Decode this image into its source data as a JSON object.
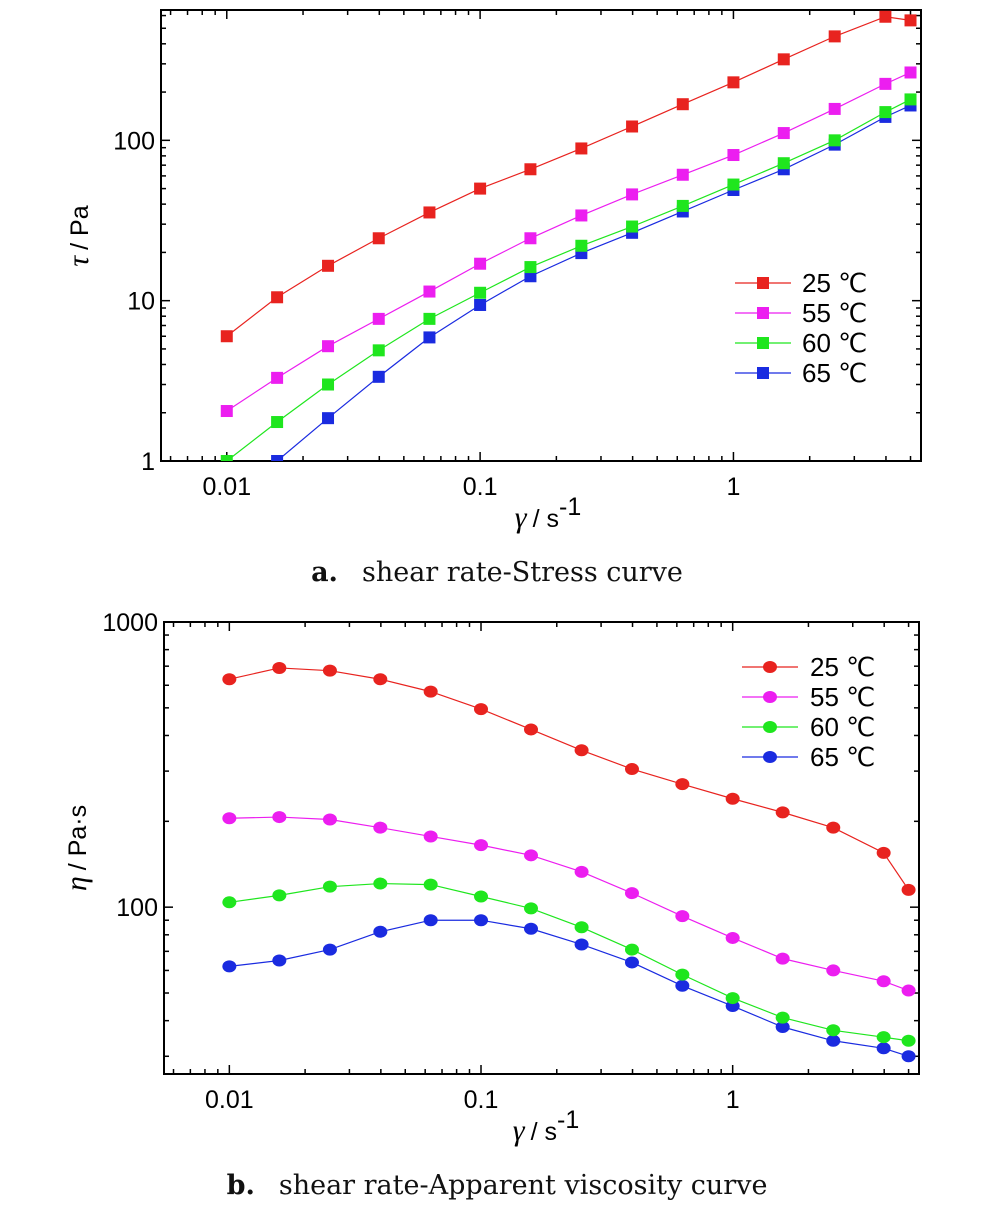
{
  "chart_data": [
    {
      "type": "line",
      "marker": "square",
      "xscale": "log",
      "yscale": "log",
      "xlim": [
        0.0055,
        5.5
      ],
      "ylim": [
        1,
        650
      ],
      "xticks": [
        "0.01",
        "0.1",
        "1"
      ],
      "yticks": [
        "1",
        "10",
        "100"
      ],
      "xlabel_symbol": "γ",
      "xlabel_unit": "/ s",
      "xlabel_sup": "-1",
      "ylabel_symbol": "τ",
      "ylabel_unit": "/ Pa",
      "legend_position": "lower-right",
      "caption_letter": "a.",
      "caption_text": "shear rate-Stress curve",
      "x": [
        0.01,
        0.0158,
        0.0251,
        0.0398,
        0.0631,
        0.1,
        0.158,
        0.251,
        0.398,
        0.631,
        1.0,
        1.58,
        2.51,
        3.98,
        5.0
      ],
      "series": [
        {
          "name": "25 ℃",
          "color": "#e8231f",
          "values": [
            6.0,
            10.5,
            16.5,
            24.5,
            35.5,
            50,
            66,
            89,
            122,
            168,
            230,
            320,
            445,
            590,
            560
          ]
        },
        {
          "name": "55 ℃",
          "color": "#ec1ef0",
          "values": [
            2.05,
            3.3,
            5.2,
            7.7,
            11.4,
            17,
            24.5,
            34,
            46,
            61,
            81,
            111,
            157,
            225,
            265
          ]
        },
        {
          "name": "60 ℃",
          "color": "#1fe61e",
          "values": [
            1.0,
            1.75,
            3.0,
            4.9,
            7.7,
            11.2,
            16.2,
            22,
            29,
            39,
            53,
            72,
            100,
            150,
            180
          ]
        },
        {
          "name": "65 ℃",
          "color": "#1a2be0",
          "values": [
            0.62,
            1.0,
            1.85,
            3.35,
            5.9,
            9.4,
            14.2,
            19.8,
            26.5,
            36,
            49,
            66,
            94,
            140,
            165
          ]
        }
      ]
    },
    {
      "type": "line",
      "marker": "circle",
      "xscale": "log",
      "yscale": "log",
      "xlim": [
        0.0055,
        5.5
      ],
      "ylim": [
        26,
        1000
      ],
      "xticks": [
        "0.01",
        "0.1",
        "1"
      ],
      "yticks": [
        "100",
        "1000"
      ],
      "xlabel_symbol": "γ",
      "xlabel_unit": "/ s",
      "xlabel_sup": "-1",
      "ylabel_symbol": "η",
      "ylabel_unit": "/ Pa·s",
      "legend_position": "top-right",
      "caption_letter": "b.",
      "caption_text": "shear rate-Apparent viscosity curve",
      "x": [
        0.01,
        0.0158,
        0.0251,
        0.0398,
        0.0631,
        0.1,
        0.158,
        0.251,
        0.398,
        0.631,
        1.0,
        1.58,
        2.51,
        3.98,
        5.0
      ],
      "series": [
        {
          "name": "25 ℃",
          "color": "#e8231f",
          "values": [
            630,
            690,
            675,
            630,
            570,
            495,
            420,
            355,
            305,
            270,
            240,
            215,
            190,
            155,
            115
          ]
        },
        {
          "name": "55 ℃",
          "color": "#ec1ef0",
          "values": [
            205,
            207,
            203,
            190,
            177,
            165,
            152,
            133,
            112,
            93,
            78,
            66,
            60,
            55,
            51
          ]
        },
        {
          "name": "60 ℃",
          "color": "#1fe61e",
          "values": [
            104,
            110,
            118,
            121,
            120,
            109,
            99,
            85,
            71,
            58,
            48,
            41,
            37,
            35,
            34
          ]
        },
        {
          "name": "65 ℃",
          "color": "#1a2be0",
          "values": [
            62,
            65,
            71,
            82,
            90,
            90,
            84,
            74,
            64,
            53,
            45,
            38,
            34,
            32,
            30
          ]
        }
      ]
    }
  ]
}
